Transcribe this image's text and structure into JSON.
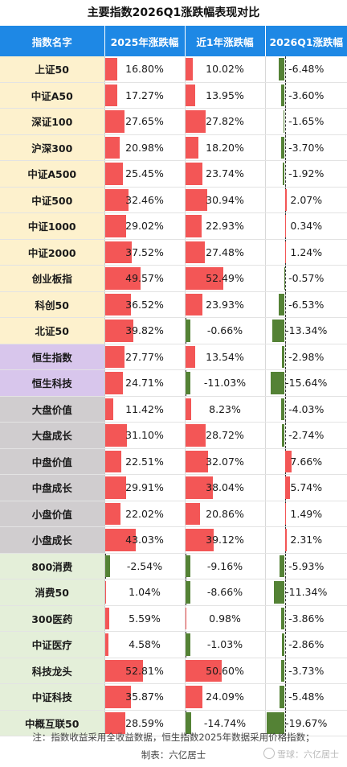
{
  "title": "主要指数2026Q1涨跌幅表现对比",
  "columns": [
    "指数名字",
    "2025年涨跌幅",
    "近1年涨跌幅",
    "2026Q1涨跌幅"
  ],
  "colors": {
    "header_bg": "#1e88e5",
    "positive_bar": "#f35656",
    "negative_bar": "#548235",
    "group_a_股宽基": "#fdf1cd",
    "group_港股": "#d8c6ec",
    "group_风格": "#d0cdcf",
    "group_行业主题": "#e4efd9"
  },
  "chart_data": {
    "type": "table",
    "value_unit": "%",
    "rows": [
      {
        "name": "上证50",
        "group": 1,
        "v2025": 16.8,
        "v1y": 10.02,
        "vq1": -6.48
      },
      {
        "name": "中证A50",
        "group": 1,
        "v2025": 17.27,
        "v1y": 13.95,
        "vq1": -3.6
      },
      {
        "name": "深证100",
        "group": 1,
        "v2025": 27.65,
        "v1y": 27.82,
        "vq1": -1.65
      },
      {
        "name": "沪深300",
        "group": 1,
        "v2025": 20.98,
        "v1y": 18.2,
        "vq1": -3.7
      },
      {
        "name": "中证A500",
        "group": 1,
        "v2025": 25.45,
        "v1y": 23.74,
        "vq1": -1.92
      },
      {
        "name": "中证500",
        "group": 1,
        "v2025": 32.46,
        "v1y": 30.94,
        "vq1": 2.07
      },
      {
        "name": "中证1000",
        "group": 1,
        "v2025": 29.02,
        "v1y": 22.93,
        "vq1": 0.34
      },
      {
        "name": "中证2000",
        "group": 1,
        "v2025": 37.52,
        "v1y": 27.48,
        "vq1": 1.24
      },
      {
        "name": "创业板指",
        "group": 1,
        "v2025": 49.57,
        "v1y": 52.49,
        "vq1": -0.57
      },
      {
        "name": "科创50",
        "group": 1,
        "v2025": 36.52,
        "v1y": 23.93,
        "vq1": -6.53
      },
      {
        "name": "北证50",
        "group": 1,
        "v2025": 39.82,
        "v1y": -0.66,
        "vq1": -13.34
      },
      {
        "name": "恒生指数",
        "group": 2,
        "v2025": 27.77,
        "v1y": 13.54,
        "vq1": -2.98
      },
      {
        "name": "恒生科技",
        "group": 2,
        "v2025": 24.71,
        "v1y": -11.03,
        "vq1": -15.64
      },
      {
        "name": "大盘价值",
        "group": 3,
        "v2025": 11.42,
        "v1y": 8.23,
        "vq1": -4.03
      },
      {
        "name": "大盘成长",
        "group": 3,
        "v2025": 31.1,
        "v1y": 28.72,
        "vq1": -2.74
      },
      {
        "name": "中盘价值",
        "group": 3,
        "v2025": 22.51,
        "v1y": 32.07,
        "vq1": 7.66
      },
      {
        "name": "中盘成长",
        "group": 3,
        "v2025": 29.91,
        "v1y": 38.04,
        "vq1": 5.74
      },
      {
        "name": "小盘价值",
        "group": 3,
        "v2025": 22.02,
        "v1y": 20.86,
        "vq1": 1.49
      },
      {
        "name": "小盘成长",
        "group": 3,
        "v2025": 43.03,
        "v1y": 39.12,
        "vq1": 2.31
      },
      {
        "name": "800消费",
        "group": 4,
        "v2025": -2.54,
        "v1y": -9.16,
        "vq1": -5.93
      },
      {
        "name": "消费50",
        "group": 4,
        "v2025": 1.04,
        "v1y": -8.66,
        "vq1": -11.34
      },
      {
        "name": "300医药",
        "group": 4,
        "v2025": 5.59,
        "v1y": 0.98,
        "vq1": -3.86
      },
      {
        "name": "中证医疗",
        "group": 4,
        "v2025": 4.58,
        "v1y": -1.03,
        "vq1": -2.86
      },
      {
        "name": "科技龙头",
        "group": 4,
        "v2025": 52.81,
        "v1y": 50.6,
        "vq1": -3.73
      },
      {
        "name": "中证科技",
        "group": 4,
        "v2025": 35.87,
        "v1y": 24.09,
        "vq1": -5.48
      },
      {
        "name": "中概互联50",
        "group": 4,
        "v2025": 28.59,
        "v1y": -14.74,
        "vq1": -19.67
      }
    ]
  },
  "footer": {
    "note": "注：指数收益采用全收益数据，恒生指数2025年数据采用价格指数；",
    "author": "制表：六亿居士",
    "watermark": "雪球：六亿居士"
  }
}
